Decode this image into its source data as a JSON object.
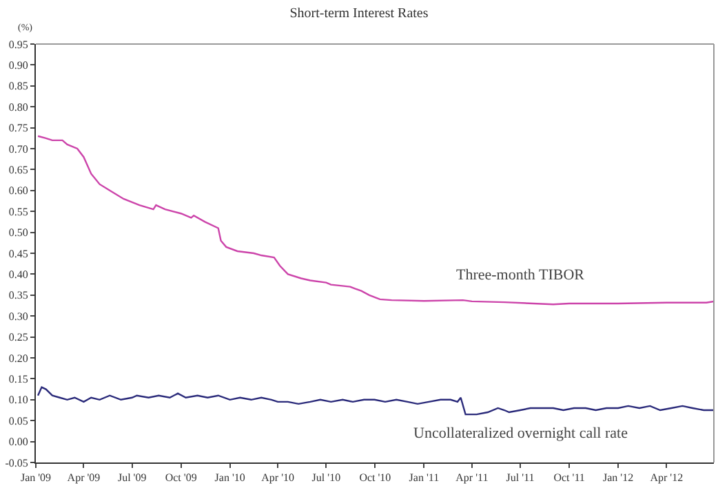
{
  "chart_data": {
    "type": "line",
    "title": "Short-term Interest Rates",
    "ylabel": "(%)",
    "xlim": [
      "2009-01-01",
      "2012-06-29"
    ],
    "xticks": [
      {
        "value": "2009-01-01",
        "label": "Jan '09"
      },
      {
        "value": "2009-04-01",
        "label": "Apr '09"
      },
      {
        "value": "2009-07-01",
        "label": "Jul '09"
      },
      {
        "value": "2009-10-01",
        "label": "Oct '09"
      },
      {
        "value": "2010-01-01",
        "label": "Jan '10"
      },
      {
        "value": "2010-04-01",
        "label": "Apr '10"
      },
      {
        "value": "2010-07-01",
        "label": "Jul '10"
      },
      {
        "value": "2010-10-01",
        "label": "Oct '10"
      },
      {
        "value": "2011-01-01",
        "label": "Jan '11"
      },
      {
        "value": "2011-04-01",
        "label": "Apr '11"
      },
      {
        "value": "2011-07-01",
        "label": "Jul '11"
      },
      {
        "value": "2011-10-01",
        "label": "Oct '11"
      },
      {
        "value": "2012-01-01",
        "label": "Jan '12"
      },
      {
        "value": "2012-04-01",
        "label": "Apr '12"
      }
    ],
    "ylim": [
      -0.05,
      0.95
    ],
    "yticks": [
      {
        "value": -0.05,
        "label": "-0.05"
      },
      {
        "value": 0,
        "label": "0.00"
      },
      {
        "value": 0.05,
        "label": "0.05"
      },
      {
        "value": 0.1,
        "label": "0.10"
      },
      {
        "value": 0.15,
        "label": "0.15"
      },
      {
        "value": 0.2,
        "label": "0.20"
      },
      {
        "value": 0.25,
        "label": "0.25"
      },
      {
        "value": 0.3,
        "label": "0.30"
      },
      {
        "value": 0.35,
        "label": "0.35"
      },
      {
        "value": 0.4,
        "label": "0.40"
      },
      {
        "value": 0.45,
        "label": "0.45"
      },
      {
        "value": 0.5,
        "label": "0.50"
      },
      {
        "value": 0.55,
        "label": "0.55"
      },
      {
        "value": 0.6,
        "label": "0.60"
      },
      {
        "value": 0.65,
        "label": "0.65"
      },
      {
        "value": 0.7,
        "label": "0.70"
      },
      {
        "value": 0.75,
        "label": "0.75"
      },
      {
        "value": 0.8,
        "label": "0.80"
      },
      {
        "value": 0.85,
        "label": "0.85"
      },
      {
        "value": 0.9,
        "label": "0.90"
      },
      {
        "value": 0.95,
        "label": "0.95"
      }
    ],
    "legend": false,
    "marker": "none",
    "line_style": "solid",
    "series": [
      {
        "name": "Three-month TIBOR",
        "color": "#cc44aa",
        "x": [
          "2009-01-05",
          "2009-01-20",
          "2009-02-01",
          "2009-02-20",
          "2009-03-01",
          "2009-03-20",
          "2009-04-01",
          "2009-04-15",
          "2009-05-01",
          "2009-05-20",
          "2009-06-15",
          "2009-07-15",
          "2009-08-10",
          "2009-08-15",
          "2009-09-01",
          "2009-10-01",
          "2009-10-20",
          "2009-10-25",
          "2009-11-15",
          "2009-12-10",
          "2009-12-15",
          "2009-12-25",
          "2010-01-15",
          "2010-02-15",
          "2010-03-01",
          "2010-03-25",
          "2010-04-05",
          "2010-04-20",
          "2010-05-15",
          "2010-06-01",
          "2010-07-01",
          "2010-07-10",
          "2010-08-15",
          "2010-08-25",
          "2010-09-05",
          "2010-09-20",
          "2010-10-10",
          "2010-11-01",
          "2011-01-01",
          "2011-03-15",
          "2011-04-01",
          "2011-06-01",
          "2011-09-01",
          "2011-10-01",
          "2012-01-01",
          "2012-04-01",
          "2012-06-15",
          "2012-06-29"
        ],
        "values": [
          0.73,
          0.725,
          0.72,
          0.72,
          0.71,
          0.7,
          0.68,
          0.64,
          0.615,
          0.6,
          0.58,
          0.565,
          0.555,
          0.565,
          0.555,
          0.545,
          0.535,
          0.54,
          0.525,
          0.51,
          0.48,
          0.465,
          0.455,
          0.45,
          0.445,
          0.44,
          0.42,
          0.4,
          0.39,
          0.385,
          0.38,
          0.375,
          0.37,
          0.365,
          0.36,
          0.35,
          0.34,
          0.338,
          0.336,
          0.338,
          0.335,
          0.333,
          0.328,
          0.33,
          0.33,
          0.332,
          0.332,
          0.335
        ]
      },
      {
        "name": "Uncollateralized overnight call rate",
        "color": "#2a2a7a",
        "x": [
          "2009-01-05",
          "2009-01-12",
          "2009-01-20",
          "2009-02-01",
          "2009-02-15",
          "2009-03-01",
          "2009-03-15",
          "2009-04-01",
          "2009-04-15",
          "2009-05-01",
          "2009-05-20",
          "2009-06-10",
          "2009-07-01",
          "2009-07-10",
          "2009-08-01",
          "2009-08-20",
          "2009-09-10",
          "2009-09-25",
          "2009-10-10",
          "2009-11-01",
          "2009-11-20",
          "2009-12-10",
          "2010-01-01",
          "2010-01-20",
          "2010-02-10",
          "2010-03-01",
          "2010-03-20",
          "2010-04-01",
          "2010-04-20",
          "2010-05-10",
          "2010-06-01",
          "2010-06-20",
          "2010-07-10",
          "2010-08-01",
          "2010-08-20",
          "2010-09-10",
          "2010-09-30",
          "2010-10-20",
          "2010-11-10",
          "2010-12-01",
          "2010-12-20",
          "2011-01-10",
          "2011-02-01",
          "2011-02-20",
          "2011-03-05",
          "2011-03-11",
          "2011-03-20",
          "2011-04-10",
          "2011-05-01",
          "2011-05-20",
          "2011-06-01",
          "2011-06-10",
          "2011-07-01",
          "2011-07-20",
          "2011-08-10",
          "2011-09-01",
          "2011-09-20",
          "2011-10-10",
          "2011-11-01",
          "2011-11-20",
          "2011-12-10",
          "2012-01-01",
          "2012-01-20",
          "2012-02-10",
          "2012-03-01",
          "2012-03-20",
          "2012-04-10",
          "2012-05-01",
          "2012-05-20",
          "2012-06-10",
          "2012-06-29"
        ],
        "values": [
          0.11,
          0.13,
          0.125,
          0.11,
          0.105,
          0.1,
          0.105,
          0.095,
          0.105,
          0.1,
          0.11,
          0.1,
          0.105,
          0.11,
          0.105,
          0.11,
          0.105,
          0.115,
          0.105,
          0.11,
          0.105,
          0.11,
          0.1,
          0.105,
          0.1,
          0.105,
          0.1,
          0.095,
          0.095,
          0.09,
          0.095,
          0.1,
          0.095,
          0.1,
          0.095,
          0.1,
          0.1,
          0.095,
          0.1,
          0.095,
          0.09,
          0.095,
          0.1,
          0.1,
          0.095,
          0.105,
          0.065,
          0.065,
          0.07,
          0.08,
          0.075,
          0.07,
          0.075,
          0.08,
          0.08,
          0.08,
          0.075,
          0.08,
          0.08,
          0.075,
          0.08,
          0.08,
          0.085,
          0.08,
          0.085,
          0.075,
          0.08,
          0.085,
          0.08,
          0.075,
          0.075
        ]
      }
    ]
  }
}
